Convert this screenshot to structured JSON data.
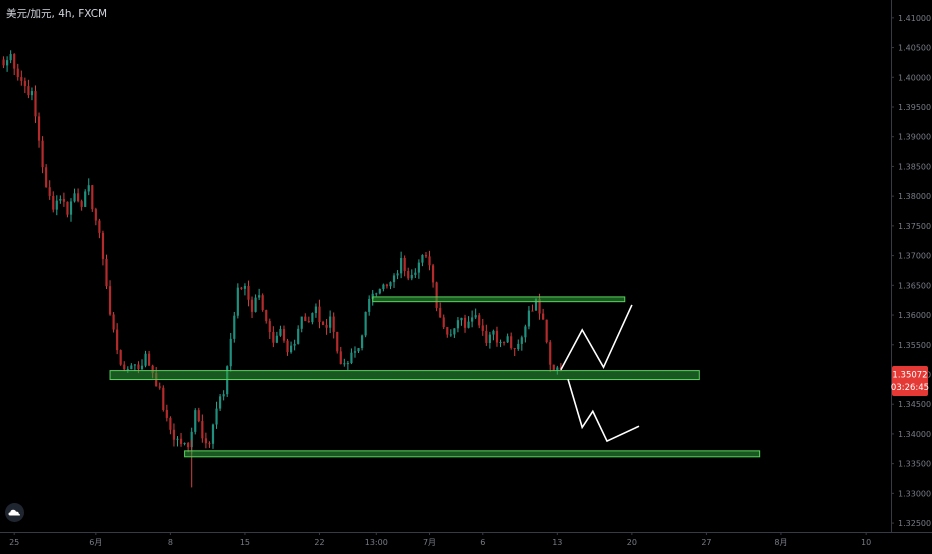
{
  "title": "美元/加元, 4h, FXCM",
  "colors": {
    "background": "#000000",
    "up": "#1f8f7e",
    "down": "#b52b2b",
    "up_wick": "#2aa591",
    "down_wick": "#d04040",
    "zone_fill": "rgba(46,160,60,0.55)",
    "zone_stroke": "#58d35c",
    "projection": "#ffffff",
    "axis_text": "#787b86",
    "price_tag": "#e53935"
  },
  "chart_data": {
    "type": "candlestick",
    "symbol": "美元/加元",
    "timeframe": "4h",
    "source": "FXCM",
    "y_axis": {
      "ylim": [
        1.3235,
        1.413
      ],
      "ticks": [
        "1.41000",
        "1.40500",
        "1.40000",
        "1.39500",
        "1.39000",
        "1.38500",
        "1.38000",
        "1.37500",
        "1.37000",
        "1.36500",
        "1.36000",
        "1.35500",
        "1.35000",
        "1.34500",
        "1.34000",
        "1.33500",
        "1.33000",
        "1.32500"
      ]
    },
    "x_axis": {
      "ticks": [
        {
          "label": "25",
          "index": 3
        },
        {
          "label": "6月",
          "index": 26
        },
        {
          "label": "8",
          "index": 47
        },
        {
          "label": "15",
          "index": 68
        },
        {
          "label": "22",
          "index": 89
        },
        {
          "label": "13:00",
          "index": 105
        },
        {
          "label": "7月",
          "index": 120
        },
        {
          "label": "6",
          "index": 135
        },
        {
          "label": "13",
          "index": 156
        },
        {
          "label": "20",
          "index": 177
        },
        {
          "label": "27",
          "index": 198
        },
        {
          "label": "8月",
          "index": 219
        },
        {
          "label": "10",
          "index": 243
        }
      ],
      "index_range": [
        -1,
        250
      ]
    },
    "last_price": "1.35072",
    "countdown": "03:26:45",
    "path": [
      [
        0,
        1.402
      ],
      [
        2,
        1.4038
      ],
      [
        4,
        1.4005
      ],
      [
        6,
        1.3985
      ],
      [
        8,
        1.397
      ],
      [
        10,
        1.3895
      ],
      [
        12,
        1.381
      ],
      [
        14,
        1.3785
      ],
      [
        16,
        1.38
      ],
      [
        18,
        1.3775
      ],
      [
        20,
        1.3805
      ],
      [
        22,
        1.379
      ],
      [
        24,
        1.381
      ],
      [
        26,
        1.376
      ],
      [
        28,
        1.37
      ],
      [
        30,
        1.36
      ],
      [
        32,
        1.3545
      ],
      [
        34,
        1.35
      ],
      [
        36,
        1.352
      ],
      [
        38,
        1.3512
      ],
      [
        40,
        1.353
      ],
      [
        42,
        1.3505
      ],
      [
        44,
        1.347
      ],
      [
        46,
        1.342
      ],
      [
        48,
        1.3395
      ],
      [
        50,
        1.3385
      ],
      [
        52,
        1.3375
      ],
      [
        54,
        1.3445
      ],
      [
        56,
        1.34
      ],
      [
        58,
        1.3385
      ],
      [
        60,
        1.344
      ],
      [
        62,
        1.347
      ],
      [
        64,
        1.356
      ],
      [
        66,
        1.364
      ],
      [
        68,
        1.365
      ],
      [
        70,
        1.361
      ],
      [
        72,
        1.364
      ],
      [
        74,
        1.3585
      ],
      [
        76,
        1.3545
      ],
      [
        78,
        1.357
      ],
      [
        80,
        1.3535
      ],
      [
        82,
        1.356
      ],
      [
        84,
        1.36
      ],
      [
        86,
        1.359
      ],
      [
        88,
        1.361
      ],
      [
        90,
        1.3575
      ],
      [
        92,
        1.36
      ],
      [
        94,
        1.354
      ],
      [
        96,
        1.351
      ],
      [
        98,
        1.353
      ],
      [
        100,
        1.3545
      ],
      [
        102,
        1.36
      ],
      [
        104,
        1.364
      ],
      [
        106,
        1.365
      ],
      [
        108,
        1.3645
      ],
      [
        110,
        1.366
      ],
      [
        112,
        1.369
      ],
      [
        114,
        1.367
      ],
      [
        116,
        1.368
      ],
      [
        118,
        1.3695
      ],
      [
        120,
        1.369
      ],
      [
        122,
        1.362
      ],
      [
        124,
        1.358
      ],
      [
        126,
        1.357
      ],
      [
        128,
        1.3595
      ],
      [
        130,
        1.3585
      ],
      [
        132,
        1.3605
      ],
      [
        134,
        1.359
      ],
      [
        136,
        1.356
      ],
      [
        138,
        1.3575
      ],
      [
        140,
        1.355
      ],
      [
        142,
        1.356
      ],
      [
        144,
        1.3535
      ],
      [
        146,
        1.356
      ],
      [
        148,
        1.361
      ],
      [
        150,
        1.362
      ],
      [
        152,
        1.36
      ],
      [
        154,
        1.352
      ],
      [
        156,
        1.351
      ],
      [
        157,
        1.3507
      ]
    ],
    "zones": [
      {
        "name": "resistance-zone",
        "x0": 104,
        "x1": 175,
        "y0": 1.36225,
        "y1": 1.36305
      },
      {
        "name": "support-zone",
        "x0": 30,
        "x1": 196,
        "y0": 1.34915,
        "y1": 1.35065
      },
      {
        "name": "lower-support-zone",
        "x0": 51,
        "x1": 213,
        "y0": 1.33615,
        "y1": 1.33715
      }
    ],
    "projections": [
      {
        "name": "bullish-projection",
        "points": [
          [
            157,
            1.3508
          ],
          [
            163,
            1.3575
          ],
          [
            169,
            1.3512
          ],
          [
            177,
            1.3617
          ]
        ]
      },
      {
        "name": "bearish-projection",
        "points": [
          [
            159,
            1.3492
          ],
          [
            163,
            1.3411
          ],
          [
            166,
            1.3438
          ],
          [
            170,
            1.3388
          ],
          [
            179,
            1.3413
          ]
        ]
      }
    ]
  }
}
